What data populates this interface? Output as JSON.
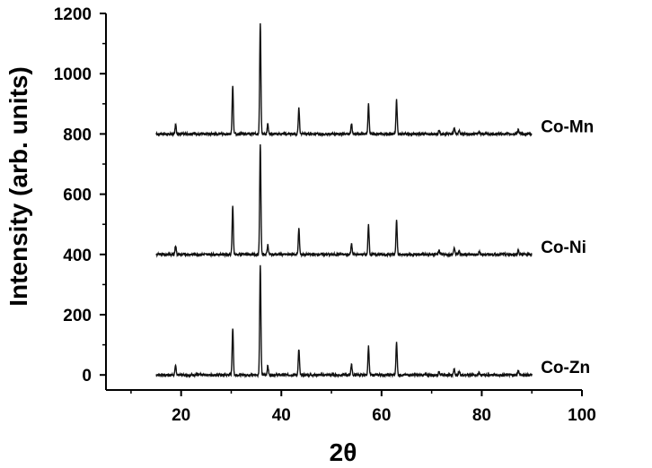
{
  "chart_data": {
    "type": "line",
    "xlabel": "2θ",
    "ylabel": "Intensity (arb. units)",
    "xlim": [
      5,
      100
    ],
    "ylim": [
      -50,
      1200
    ],
    "x_ticks": [
      20,
      40,
      60,
      80,
      100
    ],
    "y_ticks": [
      0,
      200,
      400,
      600,
      800,
      1000,
      1200
    ],
    "grid": false,
    "legend": "none",
    "x_range": [
      15,
      90
    ],
    "series": [
      {
        "name": "Co-Zn",
        "baseline": 0,
        "peaks": [
          [
            18.9,
            30
          ],
          [
            30.3,
            155
          ],
          [
            35.8,
            365
          ],
          [
            37.3,
            30
          ],
          [
            43.5,
            85
          ],
          [
            54.0,
            35
          ],
          [
            57.4,
            95
          ],
          [
            63.0,
            110
          ],
          [
            71.5,
            12
          ],
          [
            74.5,
            20
          ],
          [
            75.5,
            12
          ],
          [
            79.5,
            8
          ],
          [
            87.3,
            15
          ]
        ]
      },
      {
        "name": "Co-Ni",
        "baseline": 400,
        "peaks": [
          [
            18.9,
            30
          ],
          [
            30.3,
            158
          ],
          [
            35.8,
            368
          ],
          [
            37.3,
            32
          ],
          [
            43.5,
            85
          ],
          [
            54.0,
            35
          ],
          [
            57.4,
            98
          ],
          [
            63.0,
            112
          ],
          [
            71.5,
            12
          ],
          [
            74.5,
            22
          ],
          [
            75.5,
            12
          ],
          [
            79.5,
            8
          ],
          [
            87.3,
            15
          ]
        ]
      },
      {
        "name": "Co-Mn",
        "baseline": 800,
        "peaks": [
          [
            18.9,
            30
          ],
          [
            30.3,
            158
          ],
          [
            35.8,
            368
          ],
          [
            37.3,
            32
          ],
          [
            43.5,
            85
          ],
          [
            54.0,
            35
          ],
          [
            57.4,
            98
          ],
          [
            63.0,
            112
          ],
          [
            71.5,
            12
          ],
          [
            74.5,
            22
          ],
          [
            75.5,
            12
          ],
          [
            79.5,
            8
          ],
          [
            87.3,
            15
          ]
        ]
      }
    ]
  }
}
